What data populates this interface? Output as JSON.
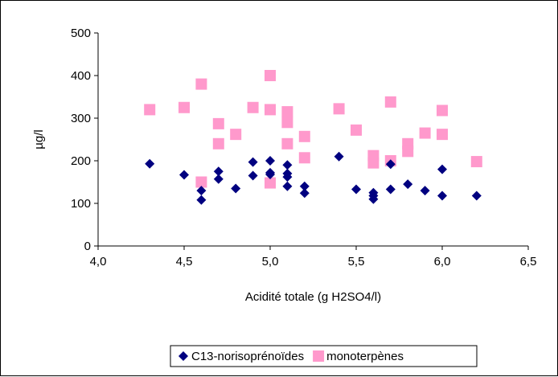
{
  "chart_data": {
    "type": "scatter",
    "title": "",
    "xlabel": "Acidité totale (g H2SO4/l)",
    "ylabel": "µg/l",
    "xlim": [
      4.0,
      6.5
    ],
    "ylim": [
      0,
      500
    ],
    "xticks": [
      "4,0",
      "4,5",
      "5,0",
      "5,5",
      "6,0",
      "6,5"
    ],
    "yticks": [
      "0",
      "100",
      "200",
      "300",
      "400",
      "500"
    ],
    "grid": false,
    "legend": "bottom",
    "series": [
      {
        "name": "C13-norisoprénoïdes",
        "color": "#000080",
        "marker": "diamond",
        "points": [
          [
            4.3,
            193
          ],
          [
            4.5,
            167
          ],
          [
            4.6,
            130
          ],
          [
            4.6,
            108
          ],
          [
            4.7,
            175
          ],
          [
            4.7,
            157
          ],
          [
            4.8,
            135
          ],
          [
            4.9,
            197
          ],
          [
            4.9,
            165
          ],
          [
            5.0,
            200
          ],
          [
            5.0,
            172
          ],
          [
            5.0,
            168
          ],
          [
            5.1,
            190
          ],
          [
            5.1,
            170
          ],
          [
            5.1,
            162
          ],
          [
            5.1,
            140
          ],
          [
            5.2,
            140
          ],
          [
            5.2,
            124
          ],
          [
            5.4,
            210
          ],
          [
            5.5,
            133
          ],
          [
            5.6,
            125
          ],
          [
            5.6,
            118
          ],
          [
            5.6,
            110
          ],
          [
            5.7,
            192
          ],
          [
            5.7,
            133
          ],
          [
            5.8,
            145
          ],
          [
            5.9,
            130
          ],
          [
            6.0,
            180
          ],
          [
            6.0,
            118
          ],
          [
            6.2,
            118
          ]
        ]
      },
      {
        "name": "monoterpènes",
        "color": "#FF99CC",
        "marker": "square",
        "points": [
          [
            4.3,
            320
          ],
          [
            4.5,
            325
          ],
          [
            4.6,
            380
          ],
          [
            4.6,
            150
          ],
          [
            4.7,
            287
          ],
          [
            4.7,
            240
          ],
          [
            4.8,
            262
          ],
          [
            4.9,
            325
          ],
          [
            5.0,
            400
          ],
          [
            5.0,
            320
          ],
          [
            5.0,
            148
          ],
          [
            5.1,
            315
          ],
          [
            5.1,
            290
          ],
          [
            5.1,
            240
          ],
          [
            5.2,
            257
          ],
          [
            5.2,
            207
          ],
          [
            5.4,
            322
          ],
          [
            5.5,
            272
          ],
          [
            5.6,
            212
          ],
          [
            5.6,
            195
          ],
          [
            5.7,
            338
          ],
          [
            5.7,
            200
          ],
          [
            5.8,
            240
          ],
          [
            5.8,
            222
          ],
          [
            5.9,
            265
          ],
          [
            6.0,
            318
          ],
          [
            6.0,
            262
          ],
          [
            6.2,
            198
          ]
        ]
      }
    ]
  }
}
